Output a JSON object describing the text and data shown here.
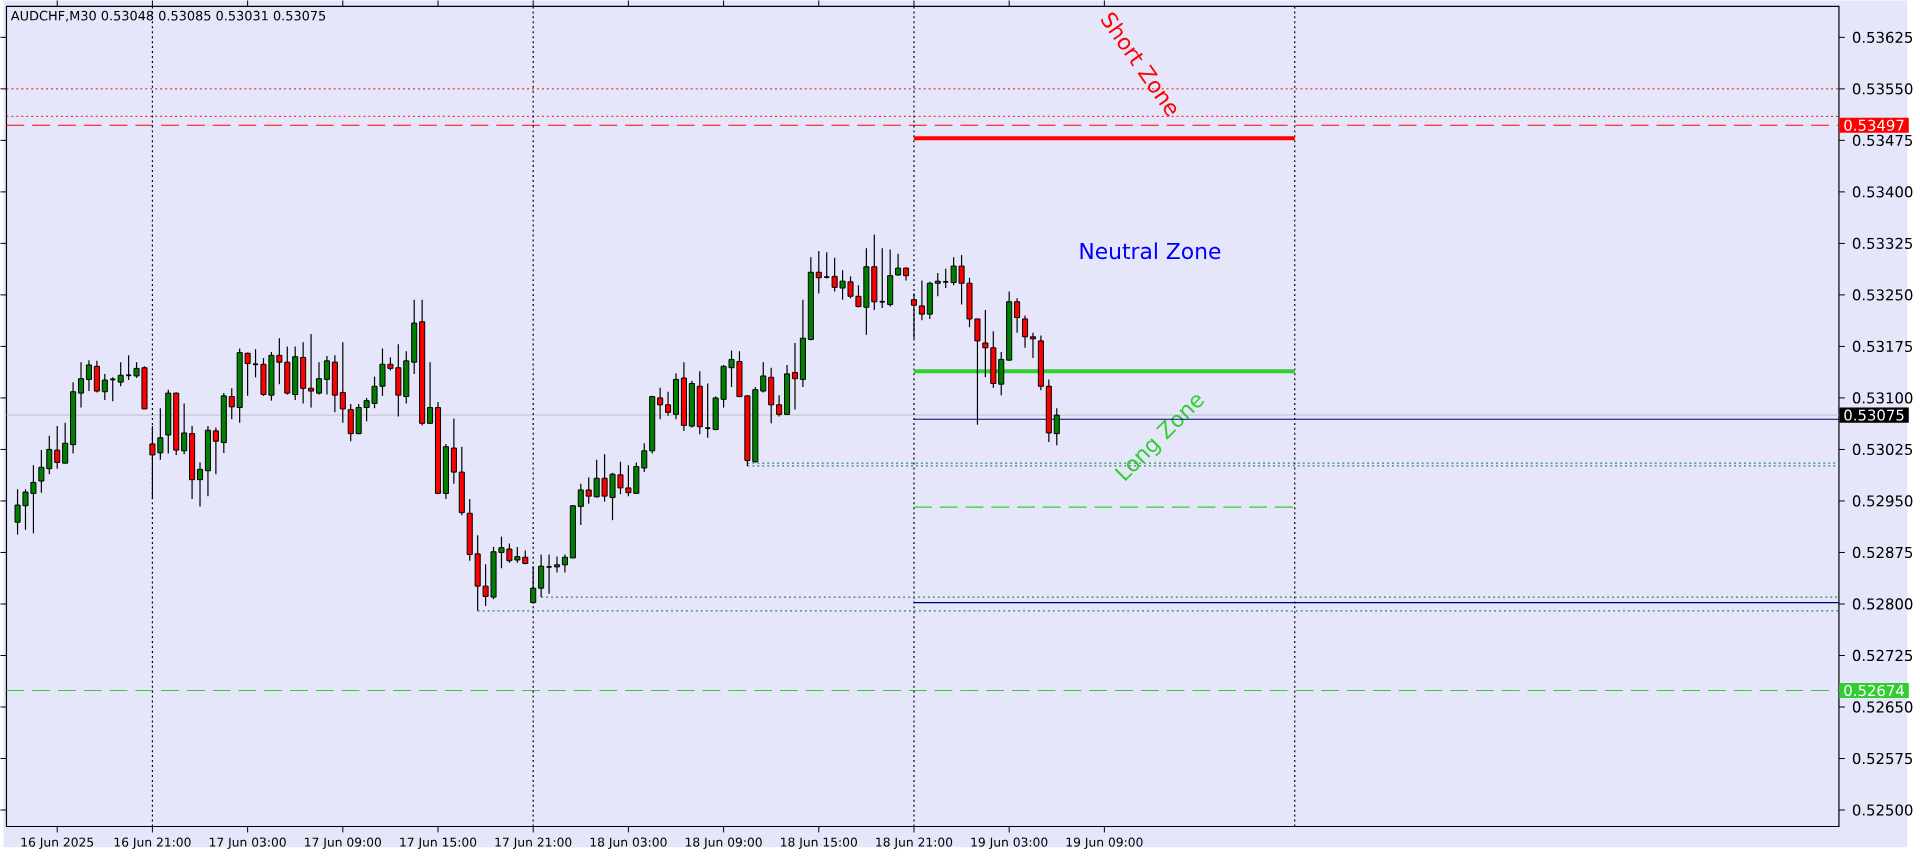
{
  "chart_data": {
    "type": "candlestick",
    "title": "AUDCHF,M30  0.53048 0.53085 0.53031 0.53075",
    "series": [
      {
        "colors": [
          "#008000",
          "#008000",
          "#008000",
          "#008000",
          "#008000",
          "#ff0000",
          "#008000",
          "#008000",
          "#008000",
          "#008000",
          "#ff0000",
          "#008000",
          "#000000",
          "#008000",
          "#000000",
          "#008000",
          "#ff0000",
          "#ff0000",
          "#008000",
          "#008000",
          "#ff0000",
          "#008000",
          "#ff0000",
          "#008000",
          "#008000",
          "#ff0000",
          "#008000",
          "#ff0000",
          "#008000",
          "#ff0000",
          "#000000",
          "#ff0000",
          "#008000",
          "#ff0000",
          "#ff0000",
          "#008000",
          "#ff0000",
          "#ff0000",
          "#008000",
          "#008000",
          "#ff0000",
          "#ff0000",
          "#ff0000",
          "#008000",
          "#008000",
          "#008000",
          "#008000",
          "#ff0000",
          "#ff0000",
          "#008000",
          "#008000",
          "#ff0000",
          "#008000",
          "#ff0000",
          "#008000",
          "#ff0000",
          "#ff0000",
          "#ff0000",
          "#ff0000",
          "#ff0000",
          "#008000",
          "#008000",
          "#ff0000",
          "#008000",
          "#ff0000",
          "#008000",
          "#008000",
          "#000000",
          "#008000",
          "#008000",
          "#008000",
          "#008000",
          "#ff0000",
          "#008000",
          "#ff0000",
          "#008000",
          "#ff0000",
          "#ff0000",
          "#008000",
          "#008000",
          "#008000",
          "#ff0000",
          "#ff0000",
          "#008000",
          "#ff0000",
          "#008000",
          "#ff0000",
          "#000000",
          "#008000",
          "#008000",
          "#008000",
          "#ff0000",
          "#ff0000",
          "#008000",
          "#008000",
          "#ff0000",
          "#ff0000",
          "#008000",
          "#ff0000",
          "#008000",
          "#008000",
          "#ff0000",
          "#000000",
          "#ff0000",
          "#008000",
          "#ff0000",
          "#ff0000",
          "#008000",
          "#ff0000",
          "#000000",
          "#008000",
          "#008000",
          "#ff0000",
          "#ff0000",
          "#ff0000",
          "#008000",
          "#008000",
          "#000000",
          "#008000",
          "#ff0000",
          "#ff0000",
          "#ff0000",
          "#ff0000",
          "#ff0000",
          "#008000",
          "#008000",
          "#ff0000",
          "#ff0000",
          "#ff0000",
          "#ff0000",
          "#ff0000",
          "#008000"
        ],
        "x": [
          "2025-06-16T12:30",
          "2025-06-16T13:00",
          "2025-06-16T13:30",
          "2025-06-16T14:00",
          "2025-06-16T14:30",
          "2025-06-16T15:00",
          "2025-06-16T15:30",
          "2025-06-16T16:00",
          "2025-06-16T16:30",
          "2025-06-16T17:00",
          "2025-06-16T17:30",
          "2025-06-16T18:00",
          "2025-06-16T18:30",
          "2025-06-16T19:00",
          "2025-06-16T19:30",
          "2025-06-16T20:00",
          "2025-06-16T20:30",
          "2025-06-16T21:00",
          "2025-06-16T21:30",
          "2025-06-16T22:00",
          "2025-06-16T22:30",
          "2025-06-16T23:00",
          "2025-06-16T23:30",
          "2025-06-17T00:00",
          "2025-06-17T00:30",
          "2025-06-17T01:00",
          "2025-06-17T01:30",
          "2025-06-17T02:00",
          "2025-06-17T02:30",
          "2025-06-17T03:00",
          "2025-06-17T03:30",
          "2025-06-17T04:00",
          "2025-06-17T04:30",
          "2025-06-17T05:00",
          "2025-06-17T05:30",
          "2025-06-17T06:00",
          "2025-06-17T06:30",
          "2025-06-17T07:00",
          "2025-06-17T07:30",
          "2025-06-17T08:00",
          "2025-06-17T08:30",
          "2025-06-17T09:00",
          "2025-06-17T09:30",
          "2025-06-17T10:00",
          "2025-06-17T10:30",
          "2025-06-17T11:00",
          "2025-06-17T11:30",
          "2025-06-17T12:00",
          "2025-06-17T12:30",
          "2025-06-17T13:00",
          "2025-06-17T13:30",
          "2025-06-17T14:00",
          "2025-06-17T14:30",
          "2025-06-17T15:00",
          "2025-06-17T15:30",
          "2025-06-17T16:00",
          "2025-06-17T16:30",
          "2025-06-17T17:00",
          "2025-06-17T17:30",
          "2025-06-17T18:00",
          "2025-06-17T18:30",
          "2025-06-17T19:00",
          "2025-06-17T19:30",
          "2025-06-17T20:00",
          "2025-06-17T20:30",
          "2025-06-17T21:00",
          "2025-06-17T21:30",
          "2025-06-17T22:00",
          "2025-06-17T22:30",
          "2025-06-17T23:00",
          "2025-06-17T23:30",
          "2025-06-18T00:00",
          "2025-06-18T00:30",
          "2025-06-18T01:00",
          "2025-06-18T01:30",
          "2025-06-18T02:00",
          "2025-06-18T02:30",
          "2025-06-18T03:00",
          "2025-06-18T03:30",
          "2025-06-18T04:00",
          "2025-06-18T04:30",
          "2025-06-18T05:00",
          "2025-06-18T05:30",
          "2025-06-18T06:00",
          "2025-06-18T06:30",
          "2025-06-18T07:00",
          "2025-06-18T07:30",
          "2025-06-18T08:00",
          "2025-06-18T08:30",
          "2025-06-18T09:00",
          "2025-06-18T09:30",
          "2025-06-18T10:00",
          "2025-06-18T10:30",
          "2025-06-18T11:00",
          "2025-06-18T11:30",
          "2025-06-18T12:00",
          "2025-06-18T12:30",
          "2025-06-18T13:00",
          "2025-06-18T13:30",
          "2025-06-18T14:00",
          "2025-06-18T14:30",
          "2025-06-18T15:00",
          "2025-06-18T15:30",
          "2025-06-18T16:00",
          "2025-06-18T16:30",
          "2025-06-18T17:00",
          "2025-06-18T17:30",
          "2025-06-18T18:00",
          "2025-06-18T18:30",
          "2025-06-18T19:00",
          "2025-06-18T19:30",
          "2025-06-18T20:00",
          "2025-06-18T20:30",
          "2025-06-18T21:00",
          "2025-06-18T21:30",
          "2025-06-18T22:00",
          "2025-06-18T22:30",
          "2025-06-18T23:00",
          "2025-06-18T23:30",
          "2025-06-19T00:00",
          "2025-06-19T00:30",
          "2025-06-19T01:00",
          "2025-06-19T01:30",
          "2025-06-19T02:00",
          "2025-06-19T02:30",
          "2025-06-19T03:00",
          "2025-06-19T03:30",
          "2025-06-19T04:00",
          "2025-06-19T04:30",
          "2025-06-19T05:00",
          "2025-06-19T05:30",
          "2025-06-19T06:00"
        ],
        "ohlc": [
          [
            0.52919,
            0.52967,
            0.52901,
            0.52944
          ],
          [
            0.52943,
            0.52967,
            0.52908,
            0.52963
          ],
          [
            0.52961,
            0.53002,
            0.52903,
            0.52977
          ],
          [
            0.52979,
            0.53024,
            0.52962,
            0.52999
          ],
          [
            0.52997,
            0.53045,
            0.52989,
            0.53025
          ],
          [
            0.53024,
            0.53059,
            0.52997,
            0.53006
          ],
          [
            0.53005,
            0.53064,
            0.53005,
            0.53034
          ],
          [
            0.53032,
            0.53123,
            0.53019,
            0.53109
          ],
          [
            0.53107,
            0.53152,
            0.53086,
            0.53128
          ],
          [
            0.53127,
            0.53155,
            0.5311,
            0.53148
          ],
          [
            0.53146,
            0.53154,
            0.53108,
            0.5311
          ],
          [
            0.53109,
            0.53135,
            0.53097,
            0.53126
          ],
          [
            0.53127,
            0.5313,
            0.53095,
            0.53127
          ],
          [
            0.53123,
            0.53152,
            0.53117,
            0.53133
          ],
          [
            0.53133,
            0.53162,
            0.53126,
            0.53133
          ],
          [
            0.53132,
            0.53152,
            0.53129,
            0.53143
          ],
          [
            0.53144,
            0.53146,
            0.53084,
            0.53084
          ],
          [
            0.53033,
            0.53059,
            0.52953,
            0.53017
          ],
          [
            0.5302,
            0.53085,
            0.5301,
            0.53042
          ],
          [
            0.53046,
            0.53112,
            0.53019,
            0.53107
          ],
          [
            0.53107,
            0.53108,
            0.53017,
            0.53024
          ],
          [
            0.53023,
            0.53092,
            0.53018,
            0.53049
          ],
          [
            0.53048,
            0.53059,
            0.52953,
            0.52981
          ],
          [
            0.52981,
            0.53006,
            0.52942,
            0.52996
          ],
          [
            0.52994,
            0.53059,
            0.52957,
            0.53053
          ],
          [
            0.53052,
            0.53057,
            0.52989,
            0.53037
          ],
          [
            0.53035,
            0.53107,
            0.5302,
            0.53103
          ],
          [
            0.53102,
            0.53114,
            0.53069,
            0.53087
          ],
          [
            0.53086,
            0.53172,
            0.53064,
            0.53166
          ],
          [
            0.53165,
            0.53166,
            0.53103,
            0.5315
          ],
          [
            0.53149,
            0.53171,
            0.5313,
            0.53149
          ],
          [
            0.53149,
            0.53158,
            0.53103,
            0.53105
          ],
          [
            0.53104,
            0.53167,
            0.53096,
            0.53162
          ],
          [
            0.53162,
            0.53187,
            0.5312,
            0.53152
          ],
          [
            0.53152,
            0.53175,
            0.53105,
            0.53107
          ],
          [
            0.53105,
            0.53175,
            0.53097,
            0.5316
          ],
          [
            0.53159,
            0.53181,
            0.53092,
            0.53114
          ],
          [
            0.53114,
            0.53193,
            0.53086,
            0.5311
          ],
          [
            0.53107,
            0.53152,
            0.53105,
            0.53128
          ],
          [
            0.53127,
            0.53161,
            0.53105,
            0.53154
          ],
          [
            0.53152,
            0.53162,
            0.53079,
            0.53104
          ],
          [
            0.53108,
            0.53181,
            0.53064,
            0.53084
          ],
          [
            0.53083,
            0.53091,
            0.53037,
            0.53048
          ],
          [
            0.53048,
            0.53091,
            0.53047,
            0.53086
          ],
          [
            0.53086,
            0.531,
            0.53066,
            0.53096
          ],
          [
            0.53092,
            0.53131,
            0.53085,
            0.53117
          ],
          [
            0.53117,
            0.53172,
            0.53103,
            0.53149
          ],
          [
            0.53149,
            0.53159,
            0.5314,
            0.53143
          ],
          [
            0.53144,
            0.53178,
            0.53073,
            0.53104
          ],
          [
            0.53102,
            0.53168,
            0.53092,
            0.53154
          ],
          [
            0.53152,
            0.53243,
            0.53135,
            0.53209
          ],
          [
            0.53211,
            0.53243,
            0.5306,
            0.53063
          ],
          [
            0.53063,
            0.53152,
            0.53063,
            0.53086
          ],
          [
            0.53086,
            0.53094,
            0.52961,
            0.52961
          ],
          [
            0.52961,
            0.53033,
            0.52953,
            0.53029
          ],
          [
            0.53027,
            0.5307,
            0.52975,
            0.52992
          ],
          [
            0.52992,
            0.53029,
            0.52929,
            0.52933
          ],
          [
            0.52932,
            0.52953,
            0.52863,
            0.52872
          ],
          [
            0.52873,
            0.529,
            0.5279,
            0.52826
          ],
          [
            0.52826,
            0.52858,
            0.52797,
            0.52811
          ],
          [
            0.5281,
            0.52883,
            0.52807,
            0.52876
          ],
          [
            0.52875,
            0.52898,
            0.52852,
            0.52882
          ],
          [
            0.5288,
            0.52888,
            0.5286,
            0.52863
          ],
          [
            0.52864,
            0.52883,
            0.5286,
            0.52869
          ],
          [
            0.52868,
            0.52878,
            0.52858,
            0.52859
          ],
          [
            0.52802,
            0.52855,
            0.52801,
            0.52823
          ],
          [
            0.52823,
            0.52872,
            0.5281,
            0.52855
          ],
          [
            0.52854,
            0.52872,
            0.52815,
            0.52854
          ],
          [
            0.52854,
            0.52869,
            0.52846,
            0.52857
          ],
          [
            0.52857,
            0.52872,
            0.52846,
            0.52868
          ],
          [
            0.52867,
            0.52944,
            0.52867,
            0.52943
          ],
          [
            0.52942,
            0.52975,
            0.52915,
            0.52966
          ],
          [
            0.52966,
            0.52984,
            0.52946,
            0.52957
          ],
          [
            0.52956,
            0.5301,
            0.52955,
            0.52983
          ],
          [
            0.52983,
            0.53018,
            0.52949,
            0.52957
          ],
          [
            0.52955,
            0.52991,
            0.52922,
            0.52989
          ],
          [
            0.52988,
            0.53007,
            0.5296,
            0.52969
          ],
          [
            0.52969,
            0.53002,
            0.52957,
            0.52962
          ],
          [
            0.52961,
            0.53006,
            0.5296,
            0.53
          ],
          [
            0.52998,
            0.53034,
            0.52992,
            0.53023
          ],
          [
            0.53023,
            0.53103,
            0.53019,
            0.53102
          ],
          [
            0.531,
            0.53115,
            0.53069,
            0.5309
          ],
          [
            0.5309,
            0.53109,
            0.53074,
            0.53079
          ],
          [
            0.53076,
            0.53136,
            0.53069,
            0.53127
          ],
          [
            0.53129,
            0.53152,
            0.53052,
            0.5306
          ],
          [
            0.53059,
            0.53125,
            0.53057,
            0.53121
          ],
          [
            0.53117,
            0.53139,
            0.53047,
            0.53058
          ],
          [
            0.53056,
            0.53121,
            0.53042,
            0.53056
          ],
          [
            0.53054,
            0.53102,
            0.53053,
            0.531
          ],
          [
            0.53098,
            0.53148,
            0.53086,
            0.53146
          ],
          [
            0.53144,
            0.53169,
            0.53116,
            0.53156
          ],
          [
            0.53153,
            0.53168,
            0.53101,
            0.53102
          ],
          [
            0.53103,
            0.53104,
            0.53001,
            0.53009
          ],
          [
            0.53007,
            0.53116,
            0.53006,
            0.53112
          ],
          [
            0.5311,
            0.53152,
            0.53108,
            0.53132
          ],
          [
            0.5313,
            0.53144,
            0.53063,
            0.5309
          ],
          [
            0.5309,
            0.53104,
            0.53073,
            0.53076
          ],
          [
            0.53076,
            0.53148,
            0.53075,
            0.53135
          ],
          [
            0.53137,
            0.5318,
            0.53083,
            0.53128
          ],
          [
            0.53127,
            0.53243,
            0.53116,
            0.53187
          ],
          [
            0.53185,
            0.53305,
            0.53184,
            0.53283
          ],
          [
            0.53283,
            0.53314,
            0.53252,
            0.53275
          ],
          [
            0.53276,
            0.53312,
            0.53274,
            0.53276
          ],
          [
            0.53277,
            0.53304,
            0.53255,
            0.53261
          ],
          [
            0.5326,
            0.53286,
            0.53243,
            0.5327
          ],
          [
            0.53269,
            0.53277,
            0.53245,
            0.53248
          ],
          [
            0.53248,
            0.53264,
            0.53232,
            0.53233
          ],
          [
            0.53232,
            0.53318,
            0.53192,
            0.53291
          ],
          [
            0.53291,
            0.53338,
            0.53228,
            0.5324
          ],
          [
            0.5324,
            0.53318,
            0.53231,
            0.5324
          ],
          [
            0.53236,
            0.53316,
            0.53233,
            0.53278
          ],
          [
            0.53279,
            0.5331,
            0.53278,
            0.53289
          ],
          [
            0.53289,
            0.5329,
            0.53271,
            0.53278
          ],
          [
            0.53243,
            0.53252,
            0.53186,
            0.53235
          ],
          [
            0.53234,
            0.53271,
            0.53213,
            0.53222
          ],
          [
            0.53222,
            0.53269,
            0.53215,
            0.53267
          ],
          [
            0.53267,
            0.53282,
            0.53248,
            0.5327
          ],
          [
            0.53269,
            0.53288,
            0.5326,
            0.53269
          ],
          [
            0.53268,
            0.53305,
            0.53264,
            0.53292
          ],
          [
            0.53292,
            0.53308,
            0.53236,
            0.53267
          ],
          [
            0.53267,
            0.53275,
            0.53203,
            0.53215
          ],
          [
            0.53215,
            0.53215,
            0.53061,
            0.53183
          ],
          [
            0.5318,
            0.53228,
            0.5313,
            0.53173
          ],
          [
            0.53173,
            0.53197,
            0.53115,
            0.53121
          ],
          [
            0.5312,
            0.53167,
            0.53104,
            0.53156
          ],
          [
            0.53155,
            0.53255,
            0.53154,
            0.5324
          ],
          [
            0.5324,
            0.53245,
            0.53195,
            0.53217
          ],
          [
            0.53215,
            0.5322,
            0.53173,
            0.53189
          ],
          [
            0.53189,
            0.53195,
            0.53158,
            0.53186
          ],
          [
            0.53183,
            0.53191,
            0.53111,
            0.53117
          ],
          [
            0.53117,
            0.53127,
            0.53036,
            0.53049
          ],
          [
            0.53048,
            0.53085,
            0.53031,
            0.53075
          ]
        ]
      },
      {
        "type": "line",
        "x": [
          "2025-06-18T21:00",
          "2025-06-19T21:00"
        ],
        "values": [
          0.53478,
          0.53478
        ],
        "color": "#ff0000",
        "line_style": "solid"
      },
      {
        "type": "line",
        "x": [
          "2025-06-18T21:00",
          "2025-06-19T21:00"
        ],
        "values": [
          0.53139,
          0.53139
        ],
        "color": "#32cd32",
        "line_style": "solid"
      },
      {
        "type": "line",
        "x": [
          "2025-06-18T21:00",
          "2025-06-21T07:18"
        ],
        "values": [
          0.53069,
          0.53069
        ],
        "color": "#000080",
        "line_style": "solid"
      },
      {
        "type": "line",
        "x": [
          "2025-06-18T21:00",
          "2025-06-19T21:00"
        ],
        "values": [
          0.52941,
          0.52941
        ],
        "color": "#32cd32",
        "line_style": "dashed"
      },
      {
        "type": "line",
        "x": [
          "2025-06-18T10:30",
          "2025-06-21T07:18"
        ],
        "values": [
          0.53005,
          0.53005
        ],
        "color": "#2e8b57",
        "line_style": "dotted"
      },
      {
        "type": "line",
        "x": [
          "2025-06-18T10:30",
          "2025-06-21T07:18"
        ],
        "values": [
          0.53001,
          0.53001
        ],
        "color": "#2e8b57",
        "line_style": "dotted"
      },
      {
        "type": "line",
        "x": [
          "2025-06-17T21:30",
          "2025-06-21T07:18"
        ],
        "values": [
          0.5281,
          0.5281
        ],
        "color": "#2e8b57",
        "line_style": "dotted"
      },
      {
        "type": "line",
        "x": [
          "2025-06-17T17:30",
          "2025-06-21T07:18"
        ],
        "values": [
          0.5279,
          0.5279
        ],
        "color": "#2e8b57",
        "line_style": "dotted"
      },
      {
        "type": "line",
        "x": [
          "2025-06-18T21:00",
          "2025-06-21T07:18"
        ],
        "values": [
          0.52802,
          0.52802
        ],
        "color": "#000080",
        "line_style": "solid"
      }
    ],
    "ref_lines": [
      {
        "axis": "y",
        "value": 0.5355,
        "color": "#ff0000",
        "line_style": "dotted"
      },
      {
        "axis": "y",
        "value": 0.5351,
        "color": "#ff0000",
        "line_style": "dotted"
      },
      {
        "axis": "y",
        "value": 0.53497,
        "label": "0.53497",
        "color": "#ff0000",
        "line_style": "dashed"
      },
      {
        "axis": "y",
        "value": 0.53075,
        "label": "0.53075",
        "color": "#c0c0c0",
        "line_style": "solid"
      },
      {
        "axis": "y",
        "value": 0.52674,
        "label": "0.52674",
        "color": "#32cd32",
        "line_style": "dashed"
      },
      {
        "axis": "x",
        "value": "2025-06-16T21:00",
        "color": "#000000",
        "line_style": "dotted"
      },
      {
        "axis": "x",
        "value": "2025-06-17T21:00",
        "color": "#000000",
        "line_style": "dotted"
      },
      {
        "axis": "x",
        "value": "2025-06-18T21:00",
        "color": "#000000",
        "line_style": "dotted"
      },
      {
        "axis": "x",
        "value": "2025-06-19T21:00",
        "color": "#000000",
        "line_style": "dotted"
      }
    ],
    "annotations": [
      "Short Zone",
      "Neutral Zone",
      "Long Zone"
    ],
    "xlim": [
      "2025-06-16T11:48",
      "2025-06-21T07:18"
    ],
    "ylim": [
      0.52476,
      0.5367
    ],
    "xticks": [
      {
        "value": "2025-06-16T15:00",
        "label": "16 Jun 2025"
      },
      {
        "value": "2025-06-16T21:00",
        "label": "16 Jun 21:00"
      },
      {
        "value": "2025-06-17T03:00",
        "label": "17 Jun 03:00"
      },
      {
        "value": "2025-06-17T09:00",
        "label": "17 Jun 09:00"
      },
      {
        "value": "2025-06-17T15:00",
        "label": "17 Jun 15:00"
      },
      {
        "value": "2025-06-17T21:00",
        "label": "17 Jun 21:00"
      },
      {
        "value": "2025-06-18T03:00",
        "label": "18 Jun 03:00"
      },
      {
        "value": "2025-06-18T09:00",
        "label": "18 Jun 09:00"
      },
      {
        "value": "2025-06-18T15:00",
        "label": "18 Jun 15:00"
      },
      {
        "value": "2025-06-18T21:00",
        "label": "18 Jun 21:00"
      },
      {
        "value": "2025-06-19T03:00",
        "label": "19 Jun 03:00"
      },
      {
        "value": "2025-06-19T09:00",
        "label": "19 Jun 09:00"
      }
    ],
    "yticks": [
      {
        "value": 0.525,
        "label": "0.52500"
      },
      {
        "value": 0.52575,
        "label": "0.52575"
      },
      {
        "value": 0.5265,
        "label": "0.52650"
      },
      {
        "value": 0.52725,
        "label": "0.52725"
      },
      {
        "value": 0.528,
        "label": "0.52800"
      },
      {
        "value": 0.52875,
        "label": "0.52875"
      },
      {
        "value": 0.5295,
        "label": "0.52950"
      },
      {
        "value": 0.53025,
        "label": "0.53025"
      },
      {
        "value": 0.531,
        "label": "0.53100"
      },
      {
        "value": 0.53175,
        "label": "0.53175"
      },
      {
        "value": 0.5325,
        "label": "0.53250"
      },
      {
        "value": 0.53325,
        "label": "0.53325"
      },
      {
        "value": 0.534,
        "label": "0.53400"
      },
      {
        "value": 0.53475,
        "label": "0.53475"
      },
      {
        "value": 0.5355,
        "label": "0.53550"
      },
      {
        "value": 0.53625,
        "label": "0.53625"
      }
    ]
  }
}
